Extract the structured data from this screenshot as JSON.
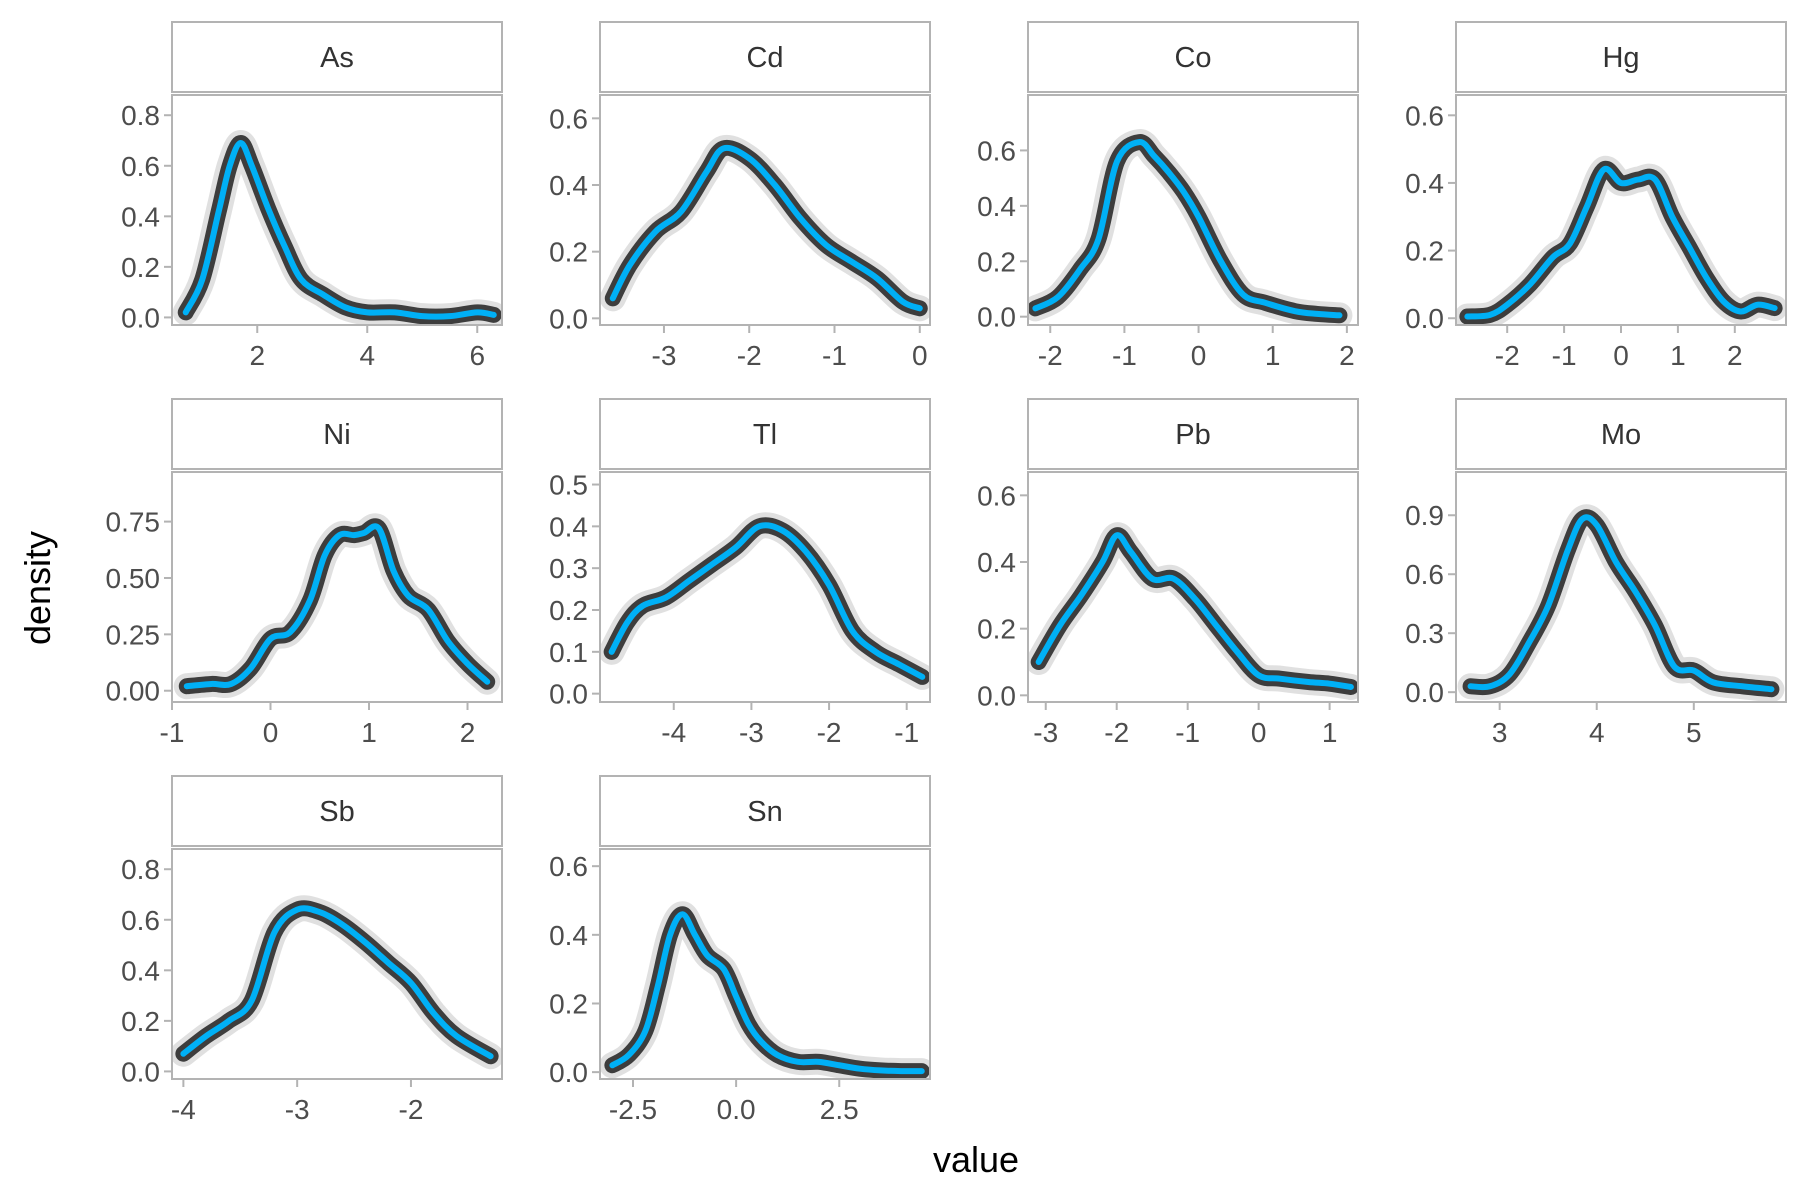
{
  "chart_data": {
    "type": "line",
    "layout": "facet_wrap",
    "xlabel": "value",
    "ylabel": "density",
    "colors": {
      "main_line": "#00b0f6",
      "band": "#000000",
      "frame": "#b3b3b3",
      "strip_fill": "#ffffff",
      "text": "#4d4d4d"
    },
    "panels": [
      {
        "name": "As",
        "xlim": [
          0.45,
          6.45
        ],
        "ylim": [
          -0.03,
          0.88
        ],
        "xticks": [
          2,
          4,
          6
        ],
        "xtick_labels": [
          "2",
          "4",
          "6"
        ],
        "yticks": [
          0,
          0.2,
          0.4,
          0.6,
          0.8
        ],
        "ytick_labels": [
          "0.0",
          "0.2",
          "0.4",
          "0.6",
          "0.8"
        ],
        "x": [
          0.7,
          1.0,
          1.3,
          1.5,
          1.7,
          1.9,
          2.2,
          2.5,
          2.8,
          3.2,
          3.6,
          4.0,
          4.5,
          5.0,
          5.5,
          6.0,
          6.3
        ],
        "y": [
          0.02,
          0.15,
          0.42,
          0.6,
          0.69,
          0.6,
          0.43,
          0.28,
          0.15,
          0.09,
          0.04,
          0.02,
          0.02,
          0.005,
          0.005,
          0.02,
          0.01
        ]
      },
      {
        "name": "Cd",
        "xlim": [
          -3.75,
          0.12
        ],
        "ylim": [
          -0.02,
          0.67
        ],
        "xticks": [
          -3,
          -2,
          -1,
          0
        ],
        "xtick_labels": [
          "-3",
          "-2",
          "-1",
          "0"
        ],
        "yticks": [
          0,
          0.2,
          0.4,
          0.6
        ],
        "ytick_labels": [
          "0.0",
          "0.2",
          "0.4",
          "0.6"
        ],
        "x": [
          -3.6,
          -3.4,
          -3.1,
          -2.8,
          -2.5,
          -2.3,
          -2.0,
          -1.7,
          -1.4,
          -1.1,
          -0.8,
          -0.5,
          -0.2,
          0.0
        ],
        "y": [
          0.06,
          0.16,
          0.26,
          0.32,
          0.44,
          0.51,
          0.48,
          0.4,
          0.3,
          0.22,
          0.17,
          0.12,
          0.05,
          0.03
        ]
      },
      {
        "name": "Co",
        "xlim": [
          -2.3,
          2.15
        ],
        "ylim": [
          -0.03,
          0.8
        ],
        "xticks": [
          -2,
          -1,
          0,
          1,
          2
        ],
        "xtick_labels": [
          "-2",
          "-1",
          "0",
          "1",
          "2"
        ],
        "yticks": [
          0,
          0.2,
          0.4,
          0.6
        ],
        "ytick_labels": [
          "0.0",
          "0.2",
          "0.4",
          "0.6"
        ],
        "x": [
          -2.2,
          -1.9,
          -1.6,
          -1.35,
          -1.1,
          -0.8,
          -0.6,
          -0.4,
          -0.2,
          0.0,
          0.3,
          0.6,
          0.9,
          1.3,
          1.6,
          1.9
        ],
        "y": [
          0.03,
          0.07,
          0.17,
          0.28,
          0.56,
          0.63,
          0.58,
          0.52,
          0.45,
          0.36,
          0.2,
          0.08,
          0.05,
          0.02,
          0.01,
          0.005
        ]
      },
      {
        "name": "Hg",
        "xlim": [
          -2.9,
          2.9
        ],
        "ylim": [
          -0.02,
          0.66
        ],
        "xticks": [
          -2,
          -1,
          0,
          1,
          2
        ],
        "xtick_labels": [
          "-2",
          "-1",
          "0",
          "1",
          "2"
        ],
        "yticks": [
          0,
          0.2,
          0.4,
          0.6
        ],
        "ytick_labels": [
          "0.0",
          "0.2",
          "0.4",
          "0.6"
        ],
        "x": [
          -2.7,
          -2.3,
          -2.0,
          -1.6,
          -1.2,
          -0.9,
          -0.6,
          -0.3,
          0.0,
          0.3,
          0.6,
          0.9,
          1.2,
          1.5,
          1.8,
          2.1,
          2.4,
          2.7
        ],
        "y": [
          0.005,
          0.01,
          0.04,
          0.1,
          0.18,
          0.22,
          0.33,
          0.44,
          0.4,
          0.41,
          0.41,
          0.3,
          0.21,
          0.12,
          0.05,
          0.02,
          0.04,
          0.03
        ]
      },
      {
        "name": "Ni",
        "xlim": [
          -1.0,
          2.35
        ],
        "ylim": [
          -0.05,
          0.97
        ],
        "xticks": [
          -1,
          0,
          1,
          2
        ],
        "xtick_labels": [
          "-1",
          "0",
          "1",
          "2"
        ],
        "yticks": [
          0,
          0.25,
          0.5,
          0.75
        ],
        "ytick_labels": [
          "0.00",
          "0.25",
          "0.50",
          "0.75"
        ],
        "x": [
          -0.85,
          -0.6,
          -0.4,
          -0.2,
          0.0,
          0.2,
          0.4,
          0.55,
          0.7,
          0.85,
          0.95,
          1.1,
          1.25,
          1.4,
          1.6,
          1.8,
          2.0,
          2.2
        ],
        "y": [
          0.02,
          0.03,
          0.03,
          0.1,
          0.23,
          0.26,
          0.4,
          0.6,
          0.69,
          0.69,
          0.7,
          0.72,
          0.53,
          0.42,
          0.36,
          0.22,
          0.12,
          0.04
        ]
      },
      {
        "name": "Tl",
        "xlim": [
          -4.95,
          -0.7
        ],
        "ylim": [
          -0.02,
          0.53
        ],
        "xticks": [
          -4,
          -3,
          -2,
          -1
        ],
        "xtick_labels": [
          "-4",
          "-3",
          "-2",
          "-1"
        ],
        "yticks": [
          0,
          0.1,
          0.2,
          0.3,
          0.4,
          0.5
        ],
        "ytick_labels": [
          "0.0",
          "0.1",
          "0.2",
          "0.3",
          "0.4",
          "0.5"
        ],
        "x": [
          -4.8,
          -4.6,
          -4.4,
          -4.1,
          -3.8,
          -3.5,
          -3.2,
          -2.9,
          -2.6,
          -2.3,
          -2.0,
          -1.7,
          -1.4,
          -1.1,
          -0.8
        ],
        "y": [
          0.1,
          0.17,
          0.21,
          0.23,
          0.27,
          0.31,
          0.35,
          0.4,
          0.39,
          0.34,
          0.26,
          0.15,
          0.1,
          0.07,
          0.04
        ]
      },
      {
        "name": "Pb",
        "xlim": [
          -3.25,
          1.4
        ],
        "ylim": [
          -0.02,
          0.67
        ],
        "xticks": [
          -3,
          -2,
          -1,
          0,
          1
        ],
        "xtick_labels": [
          "-3",
          "-2",
          "-1",
          "0",
          "1"
        ],
        "yticks": [
          0,
          0.2,
          0.4,
          0.6
        ],
        "ytick_labels": [
          "0.0",
          "0.2",
          "0.4",
          "0.6"
        ],
        "x": [
          -3.1,
          -2.8,
          -2.5,
          -2.2,
          -2.0,
          -1.8,
          -1.5,
          -1.2,
          -0.9,
          -0.6,
          -0.3,
          0.0,
          0.3,
          0.7,
          1.0,
          1.3
        ],
        "y": [
          0.1,
          0.21,
          0.3,
          0.4,
          0.48,
          0.43,
          0.35,
          0.35,
          0.29,
          0.21,
          0.13,
          0.06,
          0.05,
          0.04,
          0.035,
          0.025
        ]
      },
      {
        "name": "Mo",
        "xlim": [
          2.55,
          5.95
        ],
        "ylim": [
          -0.05,
          1.12
        ],
        "xticks": [
          3,
          4,
          5
        ],
        "xtick_labels": [
          "3",
          "4",
          "5"
        ],
        "yticks": [
          0,
          0.3,
          0.6,
          0.9
        ],
        "ytick_labels": [
          "0.0",
          "0.3",
          "0.6",
          "0.9"
        ],
        "x": [
          2.7,
          2.9,
          3.1,
          3.3,
          3.5,
          3.7,
          3.85,
          4.0,
          4.2,
          4.4,
          4.6,
          4.8,
          5.0,
          5.2,
          5.5,
          5.8
        ],
        "y": [
          0.03,
          0.03,
          0.09,
          0.25,
          0.44,
          0.72,
          0.88,
          0.85,
          0.66,
          0.51,
          0.34,
          0.13,
          0.11,
          0.05,
          0.03,
          0.015
        ]
      },
      {
        "name": "Sb",
        "xlim": [
          -4.1,
          -1.2
        ],
        "ylim": [
          -0.03,
          0.88
        ],
        "xticks": [
          -4,
          -3,
          -2
        ],
        "xtick_labels": [
          "-4",
          "-3",
          "-2"
        ],
        "yticks": [
          0,
          0.2,
          0.4,
          0.6,
          0.8
        ],
        "ytick_labels": [
          "0.0",
          "0.2",
          "0.4",
          "0.6",
          "0.8"
        ],
        "x": [
          -4.0,
          -3.8,
          -3.6,
          -3.4,
          -3.2,
          -3.0,
          -2.8,
          -2.6,
          -2.4,
          -2.2,
          -2.0,
          -1.8,
          -1.6,
          -1.3
        ],
        "y": [
          0.07,
          0.14,
          0.2,
          0.28,
          0.55,
          0.64,
          0.63,
          0.58,
          0.51,
          0.43,
          0.35,
          0.23,
          0.14,
          0.06
        ]
      },
      {
        "name": "Sn",
        "xlim": [
          -3.3,
          4.7
        ],
        "ylim": [
          -0.02,
          0.65
        ],
        "xticks": [
          -2.5,
          0,
          2.5
        ],
        "xtick_labels": [
          "-2.5",
          "0.0",
          "2.5"
        ],
        "yticks": [
          0,
          0.2,
          0.4,
          0.6
        ],
        "ytick_labels": [
          "0.0",
          "0.2",
          "0.4",
          "0.6"
        ],
        "x": [
          -3.0,
          -2.6,
          -2.2,
          -1.9,
          -1.6,
          -1.3,
          -1.0,
          -0.7,
          -0.3,
          0.0,
          0.3,
          0.6,
          1.0,
          1.5,
          2.0,
          2.5,
          3.0,
          3.5,
          4.0,
          4.5
        ],
        "y": [
          0.02,
          0.05,
          0.12,
          0.25,
          0.4,
          0.46,
          0.4,
          0.34,
          0.3,
          0.22,
          0.14,
          0.09,
          0.05,
          0.03,
          0.03,
          0.02,
          0.01,
          0.005,
          0.003,
          0.003
        ]
      }
    ]
  }
}
